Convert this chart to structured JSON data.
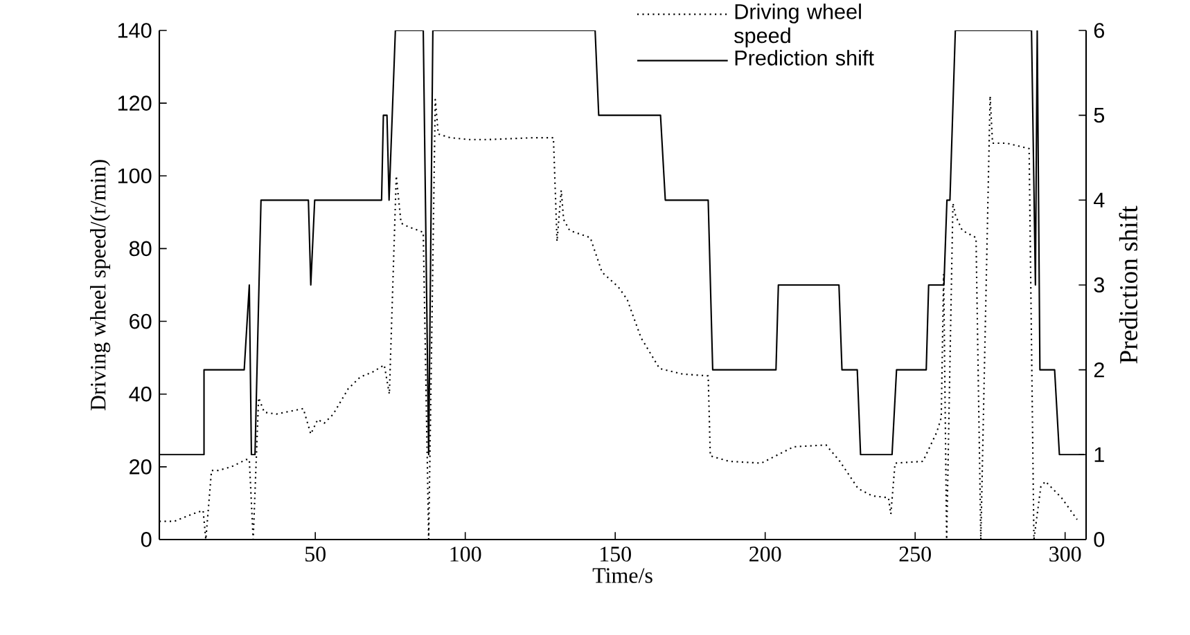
{
  "chart_data": {
    "type": "line",
    "xlabel": "Time/s",
    "ylabel": "Driving wheel speed/(r/min)",
    "y2label": "Prediction shift",
    "xlim": [
      -2,
      307
    ],
    "xticks": [
      50,
      100,
      150,
      200,
      250,
      300
    ],
    "ylim": [
      0,
      140
    ],
    "yticks": [
      0,
      20,
      40,
      60,
      80,
      100,
      120,
      140
    ],
    "y2lim": [
      0,
      6
    ],
    "y2ticks": [
      0,
      1,
      2,
      3,
      4,
      5,
      6
    ],
    "legend": "top right",
    "marker": "none",
    "series": [
      {
        "name": "Driving wheel speed",
        "color": "#000000",
        "line_style": "dotted",
        "x": [
          -2,
          3,
          9,
          12.6,
          13.5,
          15.4,
          17.7,
          22,
          27,
          28,
          29.3,
          31.1,
          33,
          37,
          46,
          48.5,
          50.8,
          53,
          56,
          61,
          65,
          69,
          73,
          74.7,
          77,
          78.6,
          81,
          86,
          87.8,
          90,
          91,
          95,
          101,
          108,
          123,
          129.4,
          130.6,
          132,
          132.8,
          134.8,
          141.7,
          145.6,
          151,
          154,
          158.6,
          164.8,
          172.5,
          181,
          181.7,
          188,
          198.7,
          209.5,
          220.3,
          224.9,
          231,
          235.7,
          241.1,
          241.9,
          243.3,
          252.6,
          257.2,
          258.7,
          259.5,
          260.5,
          262.6,
          263.5,
          265.7,
          270.3,
          271.9,
          275,
          275.8,
          280.4,
          288,
          289.6,
          291.9,
          293.4,
          298.8,
          304
        ],
        "values": [
          5,
          5,
          7,
          8,
          0,
          19,
          19,
          20,
          22,
          22,
          0,
          39,
          35,
          34.5,
          36,
          29,
          33,
          32,
          34.5,
          41.5,
          44.7,
          46,
          48,
          40,
          100,
          87,
          86,
          84.5,
          0,
          121,
          111.5,
          110.5,
          110,
          110,
          110.5,
          110.5,
          82,
          96,
          88,
          85,
          83,
          73.5,
          69.5,
          66,
          55.5,
          47,
          45.5,
          45,
          23,
          21.5,
          21,
          25.5,
          26,
          21.5,
          14,
          12,
          11.5,
          7,
          21,
          21.5,
          29.5,
          33.5,
          73,
          0,
          92.5,
          89,
          85,
          83,
          0,
          122,
          109,
          109,
          107.5,
          0,
          14.5,
          16,
          11.5,
          5.5
        ]
      },
      {
        "name": "Prediction shift",
        "color": "#000000",
        "line_style": "solid",
        "axis": "y2",
        "x": [
          -2,
          12.9,
          12.9,
          26.3,
          28,
          28.7,
          29.9,
          31.9,
          47.7,
          48.5,
          49.8,
          72.1,
          72.7,
          73.9,
          74.6,
          76.7,
          86,
          87.8,
          89.2,
          143.3,
          144.5,
          165.1,
          166.7,
          181,
          182.5,
          203.6,
          204.4,
          224.6,
          225.6,
          230.7,
          231.8,
          242.3,
          243.8,
          253.7,
          254.5,
          259.6,
          260.6,
          261.6,
          263.4,
          288.8,
          290.1,
          290.7,
          291.6,
          296.5,
          298.1,
          306.4
        ],
        "values": [
          1,
          1,
          2,
          2,
          3,
          1,
          1,
          4,
          4,
          3,
          4,
          4,
          5,
          5,
          4,
          6,
          6,
          1,
          6,
          6,
          5,
          5,
          4,
          4,
          2,
          2,
          3,
          3,
          2,
          2,
          1,
          1,
          2,
          2,
          3,
          3,
          4,
          4,
          6,
          6,
          3,
          6,
          2,
          2,
          1,
          1
        ]
      }
    ]
  }
}
